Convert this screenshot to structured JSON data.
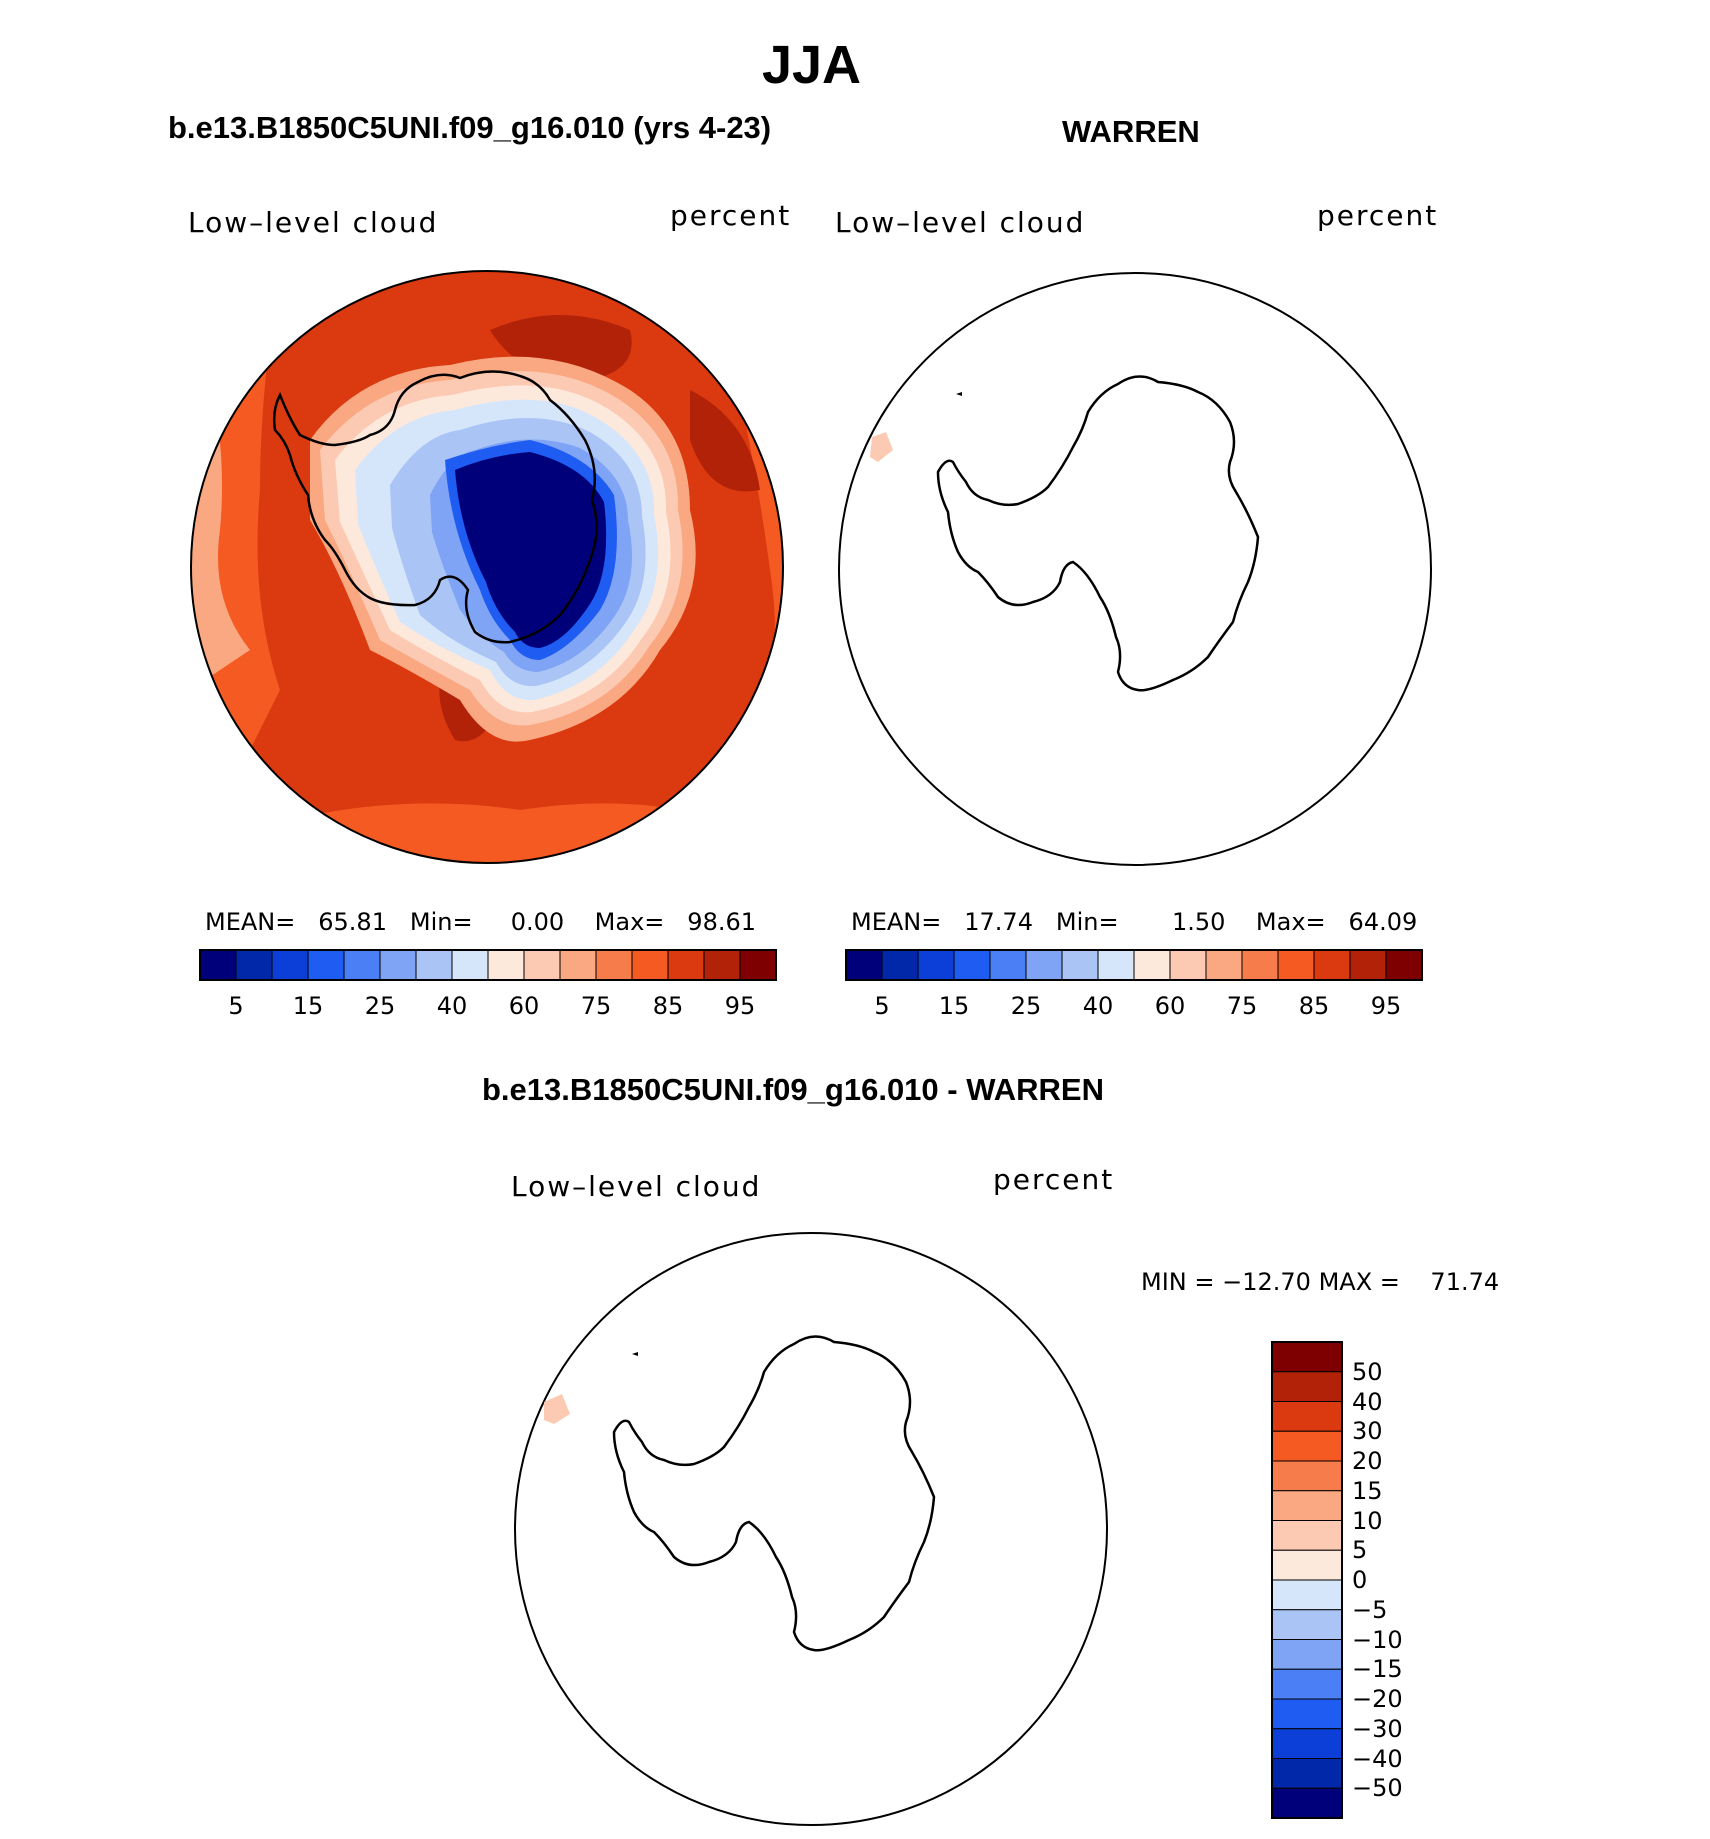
{
  "figure": {
    "title": "JJA"
  },
  "panels": {
    "model": {
      "title": "b.e13.B1850C5UNI.f09_g16.010 (yrs 4-23)",
      "variable": "Low–level cloud",
      "units": "percent",
      "stats": {
        "mean_label": "MEAN=",
        "mean": "65.81",
        "min_label": "Min=",
        "min": "0.00",
        "max_label": "Max=",
        "max": "98.61"
      }
    },
    "obs": {
      "title": "WARREN",
      "variable": "Low–level cloud",
      "units": "percent",
      "stats": {
        "mean_label": "MEAN=",
        "mean": "17.74",
        "min_label": "Min=",
        "min": "1.50",
        "max_label": "Max=",
        "max": "64.09"
      }
    },
    "diff": {
      "title": "b.e13.B1850C5UNI.f09_g16.010 - WARREN",
      "variable": "Low–level cloud",
      "units": "percent",
      "minmax": {
        "min_label": "MIN =",
        "min": "−12.70",
        "max_label": "MAX =",
        "max": "71.74"
      }
    }
  },
  "colorbars": {
    "main": {
      "colors": [
        "#00007a",
        "#0028a8",
        "#0b3fd8",
        "#1f5cf2",
        "#4a7ff5",
        "#7fa3f5",
        "#aac4f6",
        "#d6e6fa",
        "#fde8dc",
        "#fccab3",
        "#f9a882",
        "#f77c4c",
        "#f45a22",
        "#db3910",
        "#b22208",
        "#7e0000"
      ],
      "tick_labels": [
        "5",
        "15",
        "25",
        "40",
        "60",
        "75",
        "85",
        "95"
      ]
    },
    "diff": {
      "colors": [
        "#00007a",
        "#0028a8",
        "#0b3fd8",
        "#1f5cf2",
        "#4a7ff5",
        "#7fa3f5",
        "#aac4f6",
        "#d6e6fa",
        "#fde8dc",
        "#fccab3",
        "#f9a882",
        "#f77c4c",
        "#f45a22",
        "#db3910",
        "#b22208",
        "#7e0000"
      ],
      "tick_labels": [
        "50",
        "40",
        "30",
        "20",
        "15",
        "10",
        "5",
        "0",
        "−5",
        "−10",
        "−15",
        "−20",
        "−30",
        "−40",
        "−50"
      ]
    }
  }
}
